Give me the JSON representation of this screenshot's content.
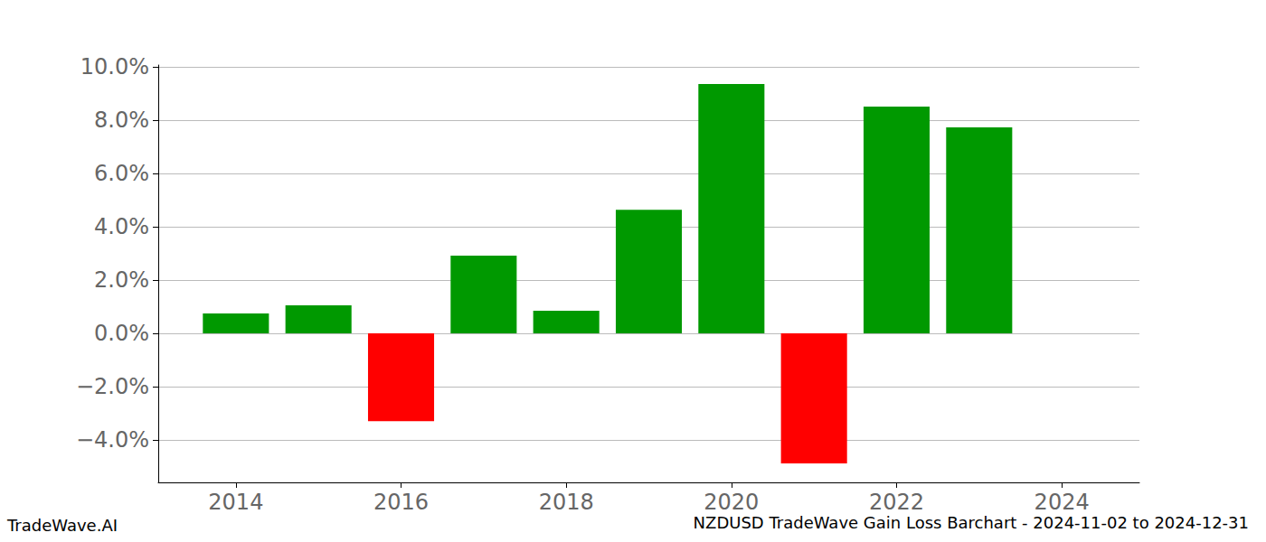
{
  "chart_data": {
    "type": "bar",
    "title": "NZDUSD TradeWave Gain Loss Barchart - 2024-11-02 to 2024-12-31",
    "annotations": [
      "TradeWave.AI"
    ],
    "x": [
      2014,
      2015,
      2016,
      2017,
      2018,
      2019,
      2020,
      2021,
      2022,
      2023,
      2024
    ],
    "values": [
      0.75,
      1.05,
      -3.29,
      2.92,
      0.85,
      4.64,
      9.36,
      -4.88,
      8.51,
      7.73,
      0
    ],
    "colors": [
      "#009900",
      "#009900",
      "#ff0000",
      "#009900",
      "#009900",
      "#009900",
      "#009900",
      "#ff0000",
      "#009900",
      "#009900",
      "#009900"
    ],
    "xlim": [
      2013.06,
      2024.94
    ],
    "xticks": [
      2014,
      2016,
      2018,
      2020,
      2022,
      2024
    ],
    "ylim": [
      -5.59,
      10.07
    ],
    "yticks": [
      {
        "value": -4,
        "label": "−4.0%"
      },
      {
        "value": -2,
        "label": "−2.0%"
      },
      {
        "value": 0,
        "label": "0.0%"
      },
      {
        "value": 2,
        "label": "2.0%"
      },
      {
        "value": 4,
        "label": "4.0%"
      },
      {
        "value": 6,
        "label": "6.0%"
      },
      {
        "value": 8,
        "label": "8.0%"
      },
      {
        "value": 10,
        "label": "10.0%"
      }
    ],
    "grid": true
  }
}
